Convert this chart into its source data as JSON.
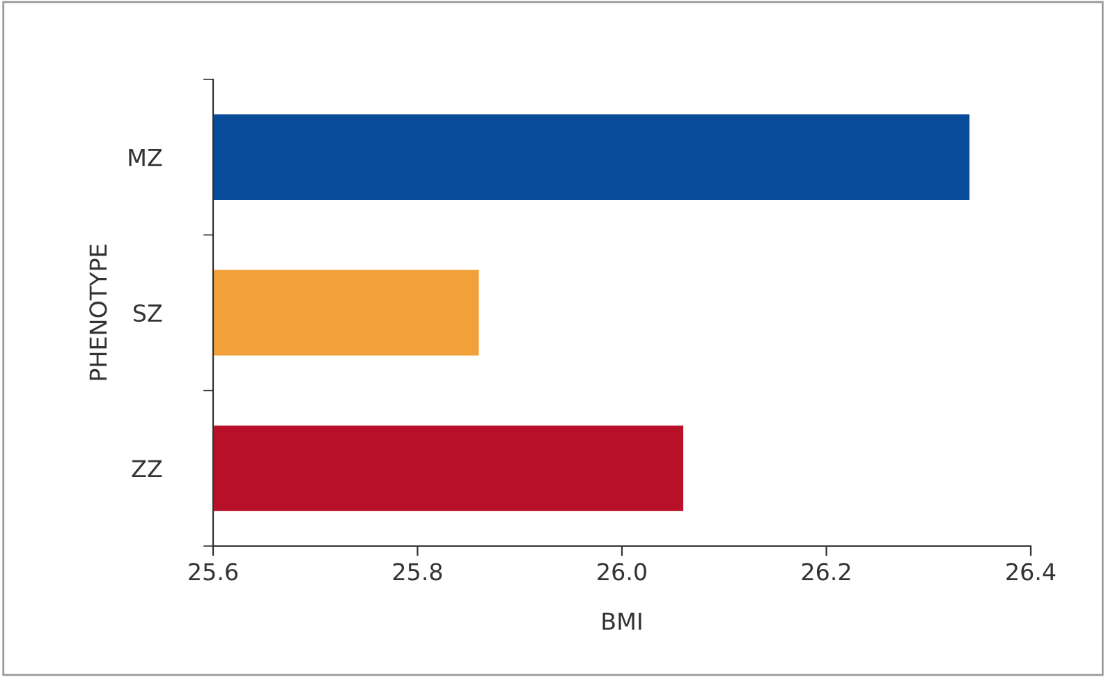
{
  "chart_data": {
    "type": "bar",
    "orientation": "horizontal",
    "xlabel": "BMI",
    "ylabel": "PHENOTYPE",
    "categories": [
      "MZ",
      "SZ",
      "ZZ"
    ],
    "values": [
      26.34,
      25.86,
      26.06
    ],
    "colors": [
      "#084c9a",
      "#f2a03a",
      "#b81028"
    ],
    "xlim": [
      25.6,
      26.4
    ],
    "xticks": [
      {
        "value": 25.6,
        "label": "25.6"
      },
      {
        "value": 25.8,
        "label": "25.8"
      },
      {
        "value": 26.0,
        "label": "26.0"
      },
      {
        "value": 26.2,
        "label": "26.2"
      },
      {
        "value": 26.4,
        "label": "26.4"
      }
    ],
    "grid": false,
    "legend": false
  }
}
